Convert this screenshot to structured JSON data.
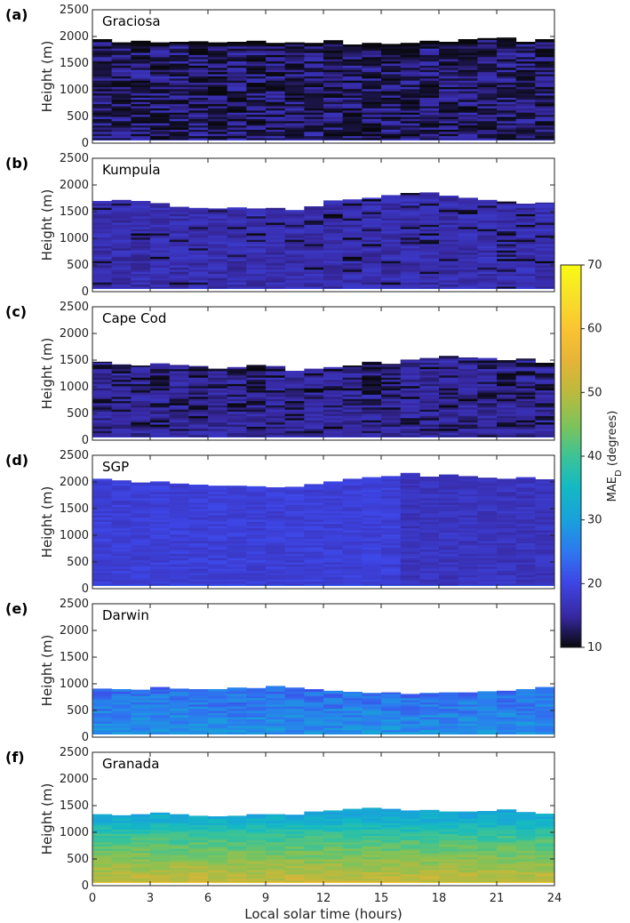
{
  "figure": {
    "xlabel": "Local solar time (hours)",
    "colorbar": {
      "label_main": "MAE",
      "label_sub": "D",
      "label_unit": " (degrees)",
      "ticks": [
        10,
        20,
        30,
        40,
        50,
        60,
        70
      ],
      "range": [
        10,
        70
      ],
      "colormap": "parula"
    }
  },
  "chart_data": [
    {
      "type": "heatmap",
      "panel": "(a)",
      "site": "Graciosa",
      "xlim": [
        0,
        24
      ],
      "ylim": [
        0,
        2500
      ],
      "xticks": [
        0,
        3,
        6,
        9,
        12,
        15,
        18,
        21,
        24
      ],
      "yticks": [
        0,
        500,
        1000,
        1500,
        2000,
        2500
      ],
      "ylabel": "Height (m)",
      "base_value": 15,
      "top_heights": [
        1950,
        1890,
        1920,
        1890,
        1900,
        1910,
        1890,
        1900,
        1920,
        1880,
        1890,
        1880,
        1930,
        1850,
        1880,
        1860,
        1880,
        1920,
        1900,
        1950,
        1970,
        1980,
        1900,
        1950
      ],
      "dark_fraction": 0.55
    },
    {
      "type": "heatmap",
      "panel": "(b)",
      "site": "Kumpula",
      "xlim": [
        0,
        24
      ],
      "ylim": [
        0,
        2500
      ],
      "xticks": [
        0,
        3,
        6,
        9,
        12,
        15,
        18,
        21,
        24
      ],
      "yticks": [
        0,
        500,
        1000,
        1500,
        2000,
        2500
      ],
      "ylabel": "Height (m)",
      "base_value": 16,
      "top_heights": [
        1700,
        1720,
        1700,
        1660,
        1590,
        1570,
        1560,
        1580,
        1560,
        1570,
        1530,
        1600,
        1710,
        1730,
        1760,
        1810,
        1850,
        1860,
        1800,
        1760,
        1720,
        1690,
        1650,
        1670
      ],
      "dark_fraction": 0.08
    },
    {
      "type": "heatmap",
      "panel": "(c)",
      "site": "Cape Cod",
      "xlim": [
        0,
        24
      ],
      "ylim": [
        0,
        2500
      ],
      "xticks": [
        0,
        3,
        6,
        9,
        12,
        15,
        18,
        21,
        24
      ],
      "yticks": [
        0,
        500,
        1000,
        1500,
        2000,
        2500
      ],
      "ylabel": "Height (m)",
      "base_value": 15,
      "top_heights": [
        1470,
        1420,
        1400,
        1440,
        1410,
        1390,
        1340,
        1370,
        1410,
        1390,
        1300,
        1340,
        1370,
        1400,
        1470,
        1430,
        1510,
        1540,
        1580,
        1550,
        1540,
        1500,
        1530,
        1450
      ],
      "dark_fraction": 0.22
    },
    {
      "type": "heatmap",
      "panel": "(d)",
      "site": "SGP",
      "xlim": [
        0,
        24
      ],
      "ylim": [
        0,
        2500
      ],
      "xticks": [
        0,
        3,
        6,
        9,
        12,
        15,
        18,
        21,
        24
      ],
      "yticks": [
        0,
        500,
        1000,
        1500,
        2000,
        2500
      ],
      "ylabel": "Height (m)",
      "base_value": 19,
      "top_heights": [
        2060,
        2030,
        1990,
        2010,
        1970,
        1950,
        1930,
        1930,
        1920,
        1900,
        1910,
        1960,
        2010,
        2060,
        2090,
        2110,
        2170,
        2100,
        2140,
        2110,
        2080,
        2060,
        2090,
        2050
      ],
      "dark_fraction": 0.0
    },
    {
      "type": "heatmap",
      "panel": "(e)",
      "site": "Darwin",
      "xlim": [
        0,
        24
      ],
      "ylim": [
        0,
        2500
      ],
      "xticks": [
        0,
        3,
        6,
        9,
        12,
        15,
        18,
        21,
        24
      ],
      "yticks": [
        0,
        500,
        1000,
        1500,
        2000,
        2500
      ],
      "ylabel": "Height (m)",
      "base_value": 24,
      "top_heights": [
        910,
        900,
        890,
        940,
        910,
        900,
        900,
        930,
        920,
        960,
        930,
        900,
        870,
        850,
        830,
        840,
        810,
        830,
        840,
        840,
        860,
        870,
        900,
        940
      ],
      "dark_fraction": 0.0
    },
    {
      "type": "heatmap",
      "panel": "(f)",
      "site": "Granada",
      "xlim": [
        0,
        24
      ],
      "ylim": [
        0,
        2500
      ],
      "xticks": [
        0,
        3,
        6,
        9,
        12,
        15,
        18,
        21,
        24
      ],
      "yticks": [
        0,
        500,
        1000,
        1500,
        2000,
        2500
      ],
      "ylabel": "Height (m)",
      "base_value": 36,
      "top_heights": [
        1340,
        1320,
        1340,
        1370,
        1340,
        1310,
        1300,
        1310,
        1340,
        1340,
        1330,
        1390,
        1410,
        1440,
        1460,
        1440,
        1410,
        1420,
        1390,
        1390,
        1400,
        1430,
        1380,
        1350
      ],
      "dark_fraction": 0.0
    }
  ]
}
